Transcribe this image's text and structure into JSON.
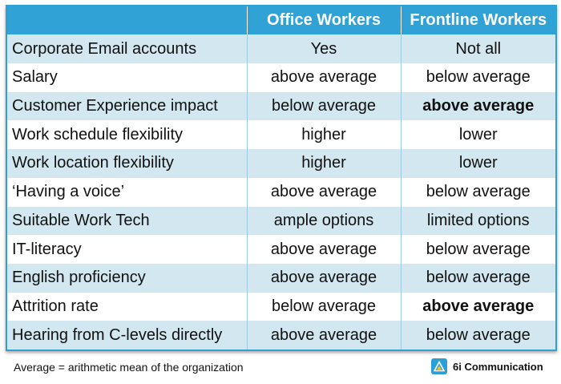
{
  "table": {
    "headers": [
      "",
      "Office Workers",
      "Frontline Workers"
    ],
    "rows": [
      {
        "attribute": "Corporate Email accounts",
        "office": "Yes",
        "frontline": "Not all",
        "frontline_bold": false
      },
      {
        "attribute": "Salary",
        "office": "above average",
        "frontline": "below average",
        "frontline_bold": false
      },
      {
        "attribute": "Customer Experience impact",
        "office": "below average",
        "frontline": "above average",
        "frontline_bold": true
      },
      {
        "attribute": "Work schedule flexibility",
        "office": "higher",
        "frontline": "lower",
        "frontline_bold": false
      },
      {
        "attribute": "Work location flexibility",
        "office": "higher",
        "frontline": "lower",
        "frontline_bold": false
      },
      {
        "attribute": "‘Having a voice’",
        "office": "above average",
        "frontline": "below average",
        "frontline_bold": false
      },
      {
        "attribute": "Suitable Work Tech",
        "office": "ample options",
        "frontline": "limited options",
        "frontline_bold": false
      },
      {
        "attribute": "IT-literacy",
        "office": "above average",
        "frontline": "below average",
        "frontline_bold": false
      },
      {
        "attribute": "English proficiency",
        "office": "above average",
        "frontline": "below average",
        "frontline_bold": false
      },
      {
        "attribute": "Attrition rate",
        "office": "below average",
        "frontline": "above average",
        "frontline_bold": true
      },
      {
        "attribute": "Hearing from C-levels directly",
        "office": "above average",
        "frontline": "below average",
        "frontline_bold": false
      }
    ]
  },
  "footnote": "Average = arithmetic mean of the organization",
  "brand": {
    "name": "6i Communication",
    "icon": "triangle-logo-icon"
  },
  "colors": {
    "header_bg": "#31a2d6",
    "stripe_bg": "#d2e7f0",
    "border": "#2f9fd4"
  }
}
